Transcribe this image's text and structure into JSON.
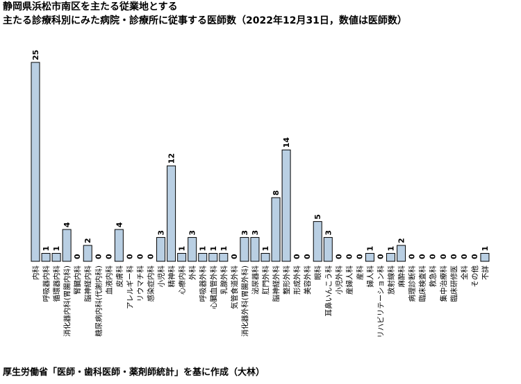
{
  "title_line1": "静岡県浜松市南区を主たる従業地とする",
  "title_line2": "主たる診療科別にみた病院・診療所に従事する医師数（2022年12月31日，数値は医師数）",
  "footer": "厚生労働省「医師・歯科医師・薬剤師統計」を基に作成（大林）",
  "colors": {
    "bar_fill": "#b9cfe3",
    "bar_stroke": "#000000"
  },
  "chart_data": {
    "type": "bar",
    "categories": [
      "内科",
      "呼吸器内科",
      "循環器内科",
      "消化器内科(胃腸内科)",
      "腎臓内科",
      "脳神経内科",
      "糖尿病内科(代謝内科)",
      "血液内科",
      "皮膚科",
      "アレルギー科",
      "リウマチ科",
      "感染症内科",
      "小児科",
      "精神科",
      "心療内科",
      "外科",
      "呼吸器外科",
      "心臓血管外科",
      "乳腺外科",
      "気管食道外科",
      "消化器外科(胃腸外科)",
      "泌尿器科",
      "肛門外科",
      "脳神経外科",
      "整形外科",
      "形成外科",
      "美容外科",
      "眼科",
      "耳鼻いんこう科",
      "小児外科",
      "産婦人科",
      "産科",
      "婦人科",
      "リハビリテーション科",
      "放射線科",
      "麻酔科",
      "病理診断科",
      "臨床検査科",
      "救急科",
      "集中治療科",
      "臨床研修医",
      "全科",
      "その他",
      "不詳"
    ],
    "values": [
      25,
      1,
      1,
      4,
      0,
      2,
      0,
      0,
      4,
      0,
      0,
      0,
      3,
      12,
      1,
      3,
      1,
      1,
      1,
      0,
      3,
      3,
      1,
      8,
      14,
      0,
      0,
      5,
      3,
      0,
      0,
      0,
      1,
      0,
      1,
      2,
      0,
      0,
      0,
      0,
      0,
      0,
      0,
      1
    ],
    "ylim": [
      0,
      25
    ],
    "grid": false,
    "data_labels": true
  }
}
